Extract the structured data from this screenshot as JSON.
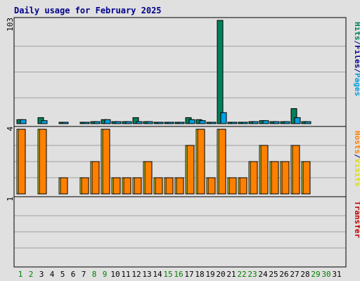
{
  "chart_data": {
    "type": "bar",
    "title": "Daily usage for February 2025",
    "x": [
      "1",
      "2",
      "3",
      "4",
      "5",
      "6",
      "7",
      "8",
      "9",
      "10",
      "11",
      "12",
      "13",
      "14",
      "15",
      "16",
      "17",
      "18",
      "19",
      "20",
      "21",
      "22",
      "23",
      "24",
      "25",
      "26",
      "27",
      "28",
      "29",
      "30",
      "31"
    ],
    "weekend_days": [
      1,
      2,
      8,
      9,
      15,
      16,
      22,
      23,
      29,
      30
    ],
    "panels": [
      {
        "id": "hits",
        "ymax_label": "103",
        "ylim": [
          0,
          103
        ],
        "labels": [
          {
            "text": "Hits",
            "color": "#00805c"
          },
          {
            "text": "/",
            "color": "#00008b"
          },
          {
            "text": "Files",
            "color": "#00008b"
          },
          {
            "text": "/",
            "color": "#00008b"
          },
          {
            "text": "Pages",
            "color": "#00a0e0"
          }
        ],
        "series": [
          {
            "name": "Hits",
            "color": "#00805c",
            "values": [
              4,
              0,
              6,
              0,
              1,
              0,
              1,
              2,
              4,
              2,
              2,
              6,
              2,
              1,
              1,
              1,
              6,
              4,
              1,
              103,
              1,
              1,
              2,
              3,
              2,
              2,
              15,
              2,
              0,
              0,
              0
            ]
          },
          {
            "name": "Files",
            "color": "#00a0e0",
            "values": [
              4,
              0,
              3,
              0,
              1,
              0,
              1,
              2,
              4,
              2,
              2,
              2,
              2,
              1,
              1,
              1,
              4,
              3,
              1,
              11,
              1,
              1,
              2,
              3,
              2,
              2,
              6,
              2,
              0,
              0,
              0
            ]
          }
        ]
      },
      {
        "id": "visits",
        "ymax_label": "4",
        "ylim": [
          0,
          4
        ],
        "labels": [
          {
            "text": "Hosts",
            "color": "#ff8000"
          },
          {
            "text": "/",
            "color": "#00008b"
          },
          {
            "text": "Visits",
            "color": "#e0e000"
          }
        ],
        "series": [
          {
            "name": "Visits",
            "color": "#ffff40",
            "values": [
              4,
              0,
              4,
              0,
              1,
              0,
              1,
              2,
              4,
              1,
              1,
              1,
              2,
              1,
              1,
              1,
              3,
              4,
              1,
              4,
              1,
              1,
              2,
              3,
              2,
              2,
              3,
              2,
              0,
              0,
              0
            ]
          },
          {
            "name": "Hosts",
            "color": "#ff8000",
            "values": [
              4,
              0,
              4,
              0,
              1,
              0,
              1,
              2,
              4,
              1,
              1,
              1,
              2,
              1,
              1,
              1,
              3,
              4,
              1,
              4,
              1,
              1,
              2,
              3,
              2,
              2,
              3,
              2,
              0,
              0,
              0
            ]
          }
        ]
      },
      {
        "id": "transfer",
        "ymax_label": "1",
        "ylim": [
          0,
          1
        ],
        "labels": [
          {
            "text": "Transfer",
            "color": "#c00000"
          }
        ],
        "series": [
          {
            "name": "Transfer",
            "color": "#c00000",
            "values": [
              0,
              0,
              0,
              0,
              0,
              0,
              0,
              0,
              0,
              0,
              0,
              0,
              0,
              0,
              0,
              0,
              0,
              0,
              0,
              0,
              0,
              0,
              0,
              0,
              0,
              0,
              0,
              0,
              0,
              0,
              0
            ]
          }
        ]
      }
    ],
    "colors": {
      "background": "#e0e0e0",
      "grid": "#a0a0a0",
      "title": "#00008b",
      "weekday_label": "#000000",
      "weekend_label": "#008000"
    }
  }
}
